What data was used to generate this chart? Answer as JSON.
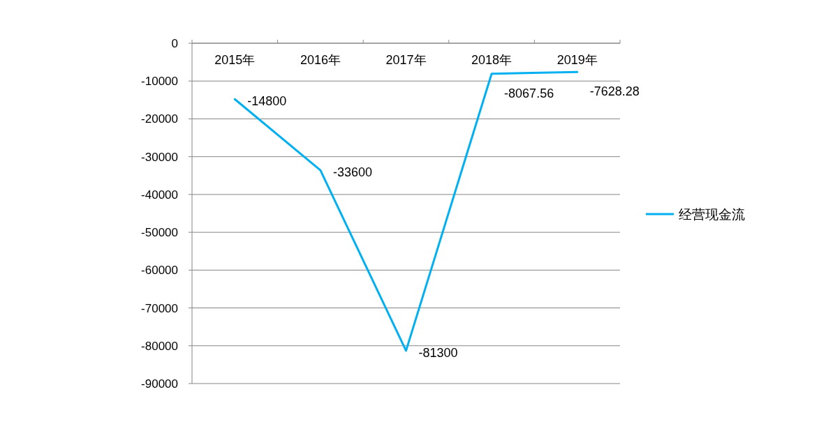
{
  "chart_data": {
    "type": "line",
    "categories": [
      "2015年",
      "2016年",
      "2017年",
      "2018年",
      "2019年"
    ],
    "series": [
      {
        "name": "经营现金流",
        "color": "#00b0f0",
        "values": [
          -14800,
          -33600,
          -81300,
          -8067.56,
          -7628.28
        ]
      }
    ],
    "ylim": [
      -90000,
      0
    ],
    "yticks": [
      0,
      -10000,
      -20000,
      -30000,
      -40000,
      -50000,
      -60000,
      -70000,
      -80000,
      -90000
    ],
    "grid": "y",
    "legend": "right",
    "data_labels": true
  }
}
